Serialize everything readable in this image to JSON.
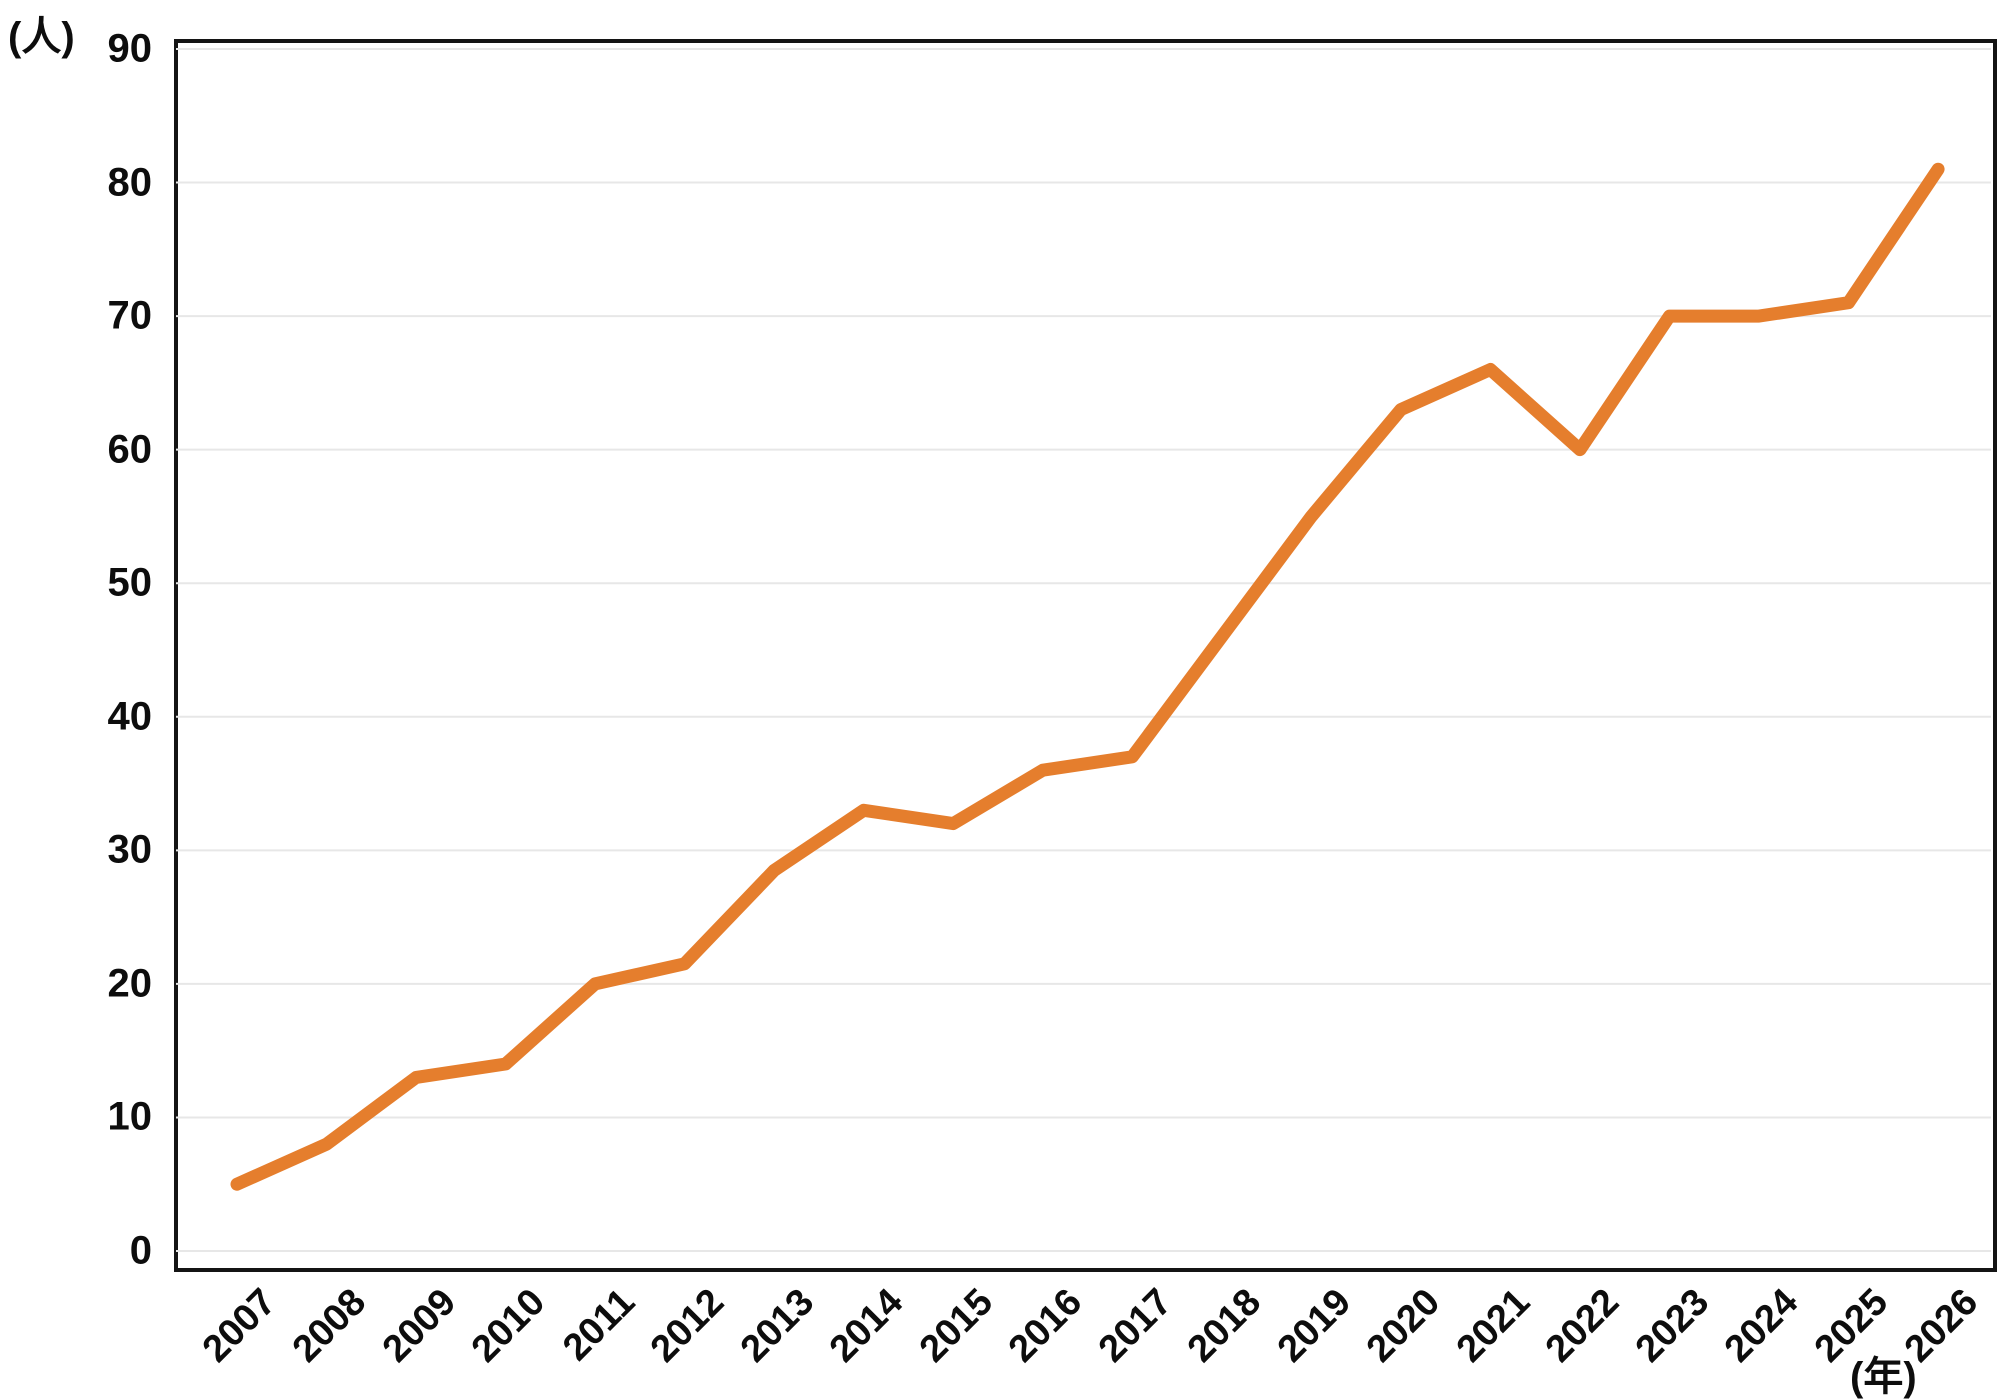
{
  "chart": {
    "y_unit": "(人)",
    "x_unit": "(年)"
  },
  "chart_data": {
    "type": "line",
    "title": "",
    "categories": [
      "2007",
      "2008",
      "2009",
      "2010",
      "2011",
      "2012",
      "2013",
      "2014",
      "2015",
      "2016",
      "2017",
      "2018",
      "2019",
      "2020",
      "2021",
      "2022",
      "2023",
      "2024",
      "2025",
      "2026"
    ],
    "values": [
      5,
      8,
      13,
      14,
      20,
      21.5,
      28.5,
      33,
      32,
      36,
      37,
      46,
      55,
      63,
      66,
      60,
      70,
      70,
      71,
      81
    ],
    "xlabel": "(年)",
    "ylabel": "(人)",
    "ylim": [
      0,
      90
    ],
    "ytick_step": 10,
    "yticks": [
      0,
      10,
      20,
      30,
      40,
      50,
      60,
      70,
      80,
      90
    ],
    "grid": "horizontal",
    "legend": "none",
    "line_color": "#E57E2D",
    "grid_color": "#E7E7E7",
    "axis_box_color": "#141414",
    "text_color": "#0d0d0d"
  }
}
